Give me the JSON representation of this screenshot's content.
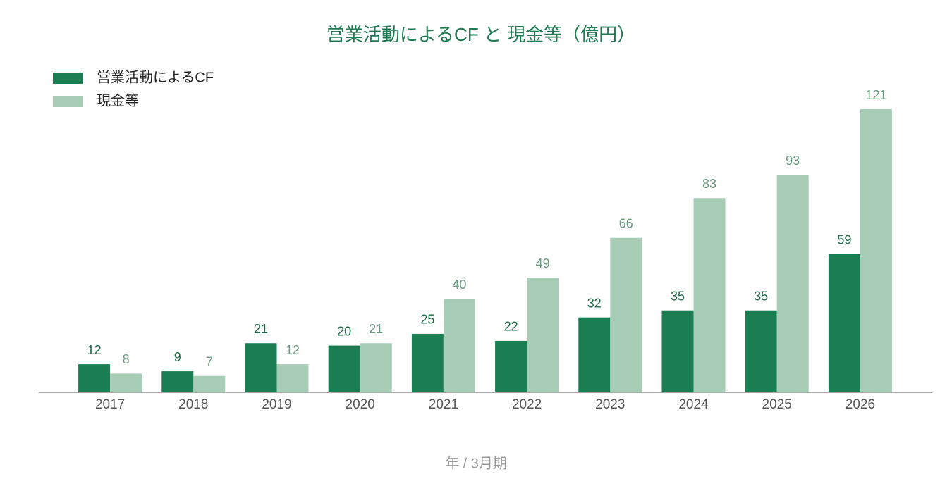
{
  "chart_data": {
    "type": "bar",
    "title": "営業活動によるCF と 現金等（億円）",
    "x_label": "年 / 3月期",
    "categories": [
      "2017",
      "2018",
      "2019",
      "2020",
      "2021",
      "2022",
      "2023",
      "2024",
      "2025",
      "2026"
    ],
    "series": [
      {
        "name": "営業活動によるCF",
        "color": "#1b7d52",
        "values": [
          12,
          9,
          21,
          20,
          25,
          22,
          32,
          35,
          35,
          59
        ]
      },
      {
        "name": "現金等",
        "color": "#a8cdb6",
        "values": [
          8,
          7,
          12,
          21,
          40,
          49,
          66,
          83,
          93,
          121
        ]
      }
    ]
  }
}
